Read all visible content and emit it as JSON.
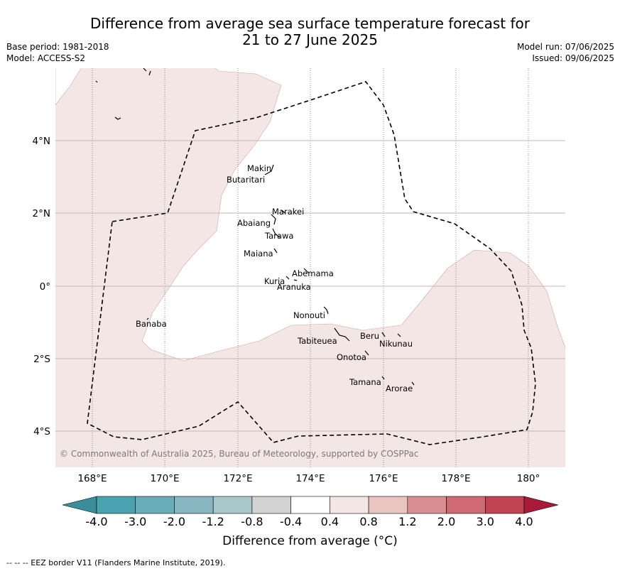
{
  "title_line1": "Difference from average sea surface temperature forecast for",
  "title_line2": "21 to 27 June 2025",
  "base_period": "Base period: 1981-2018",
  "model": "Model: ACCESS-S2",
  "model_run": "Model run: 07/06/2025",
  "issued": "Issued: 09/06/2025",
  "copyright": "© Commonwealth of Australia 2025, Bureau of Meteorology, supported by COSPPac",
  "footnote": "-- -- -- EEZ border V11 (Flanders Marine Institute, 2019).",
  "colorbar_label": "Difference from average (°C)",
  "colorbar": {
    "ticks": [
      "-4.0",
      "-3.0",
      "-2.0",
      "-1.2",
      "-0.8",
      "-0.4",
      "0.4",
      "0.8",
      "1.2",
      "2.0",
      "3.0",
      "4.0"
    ],
    "colors": [
      "#3a8e9a",
      "#4aa3b1",
      "#6aadba",
      "#88b7c2",
      "#a9c8cc",
      "#d3d3d3",
      "#ffffff",
      "#f4e6e5",
      "#e9c4c1",
      "#d98e93",
      "#cf6a73",
      "#c24352",
      "#a8193a"
    ]
  },
  "longitude_labels": [
    "168°E",
    "170°E",
    "172°E",
    "174°E",
    "176°E",
    "178°E",
    "180°"
  ],
  "latitude_labels": [
    "4°N",
    "2°N",
    "0°",
    "2°S",
    "4°S"
  ],
  "islands": [
    "Makin",
    "Butaritari",
    "Marakei",
    "Abaiang",
    "Tarawa",
    "Maiana",
    "Abemama",
    "Kuria",
    "Aranuka",
    "Nonouti",
    "Banaba",
    "Beru",
    "Nikunau",
    "Tabiteuea",
    "Onotoa",
    "Tamana",
    "Arorae"
  ],
  "anomaly_class_shaded": "0.4 to 0.8",
  "anomaly_class_unshaded": "-0.4 to 0.4"
}
